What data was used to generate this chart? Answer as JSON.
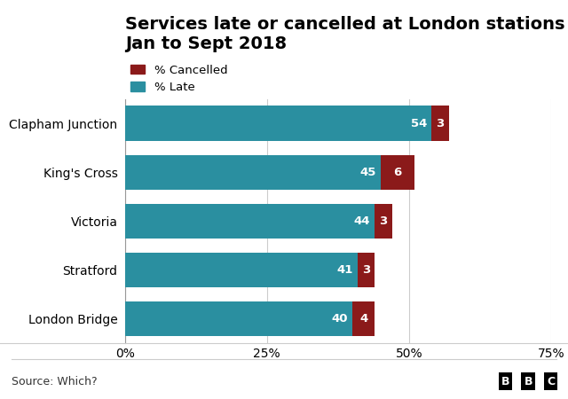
{
  "title_line1": "Services late or cancelled at London stations",
  "title_line2": "Jan to Sept 2018",
  "stations": [
    "Clapham Junction",
    "King's Cross",
    "Victoria",
    "Stratford",
    "London Bridge"
  ],
  "late_values": [
    54,
    45,
    44,
    41,
    40
  ],
  "cancelled_values": [
    3,
    6,
    3,
    3,
    4
  ],
  "color_late": "#2a8fa0",
  "color_cancelled": "#8b1a1a",
  "source": "Source: Which?",
  "xlim": [
    0,
    75
  ],
  "xticks": [
    0,
    25,
    50,
    75
  ],
  "xticklabels": [
    "0%",
    "25%",
    "50%",
    "75%"
  ],
  "bar_height": 0.72,
  "legend_cancelled": "% Cancelled",
  "legend_late": "% Late",
  "title_fontsize": 14,
  "label_fontsize": 9.5,
  "tick_fontsize": 10,
  "source_fontsize": 9,
  "bg_color": "#ffffff",
  "plot_bg_color": "#ffffff",
  "grid_color": "#cccccc"
}
